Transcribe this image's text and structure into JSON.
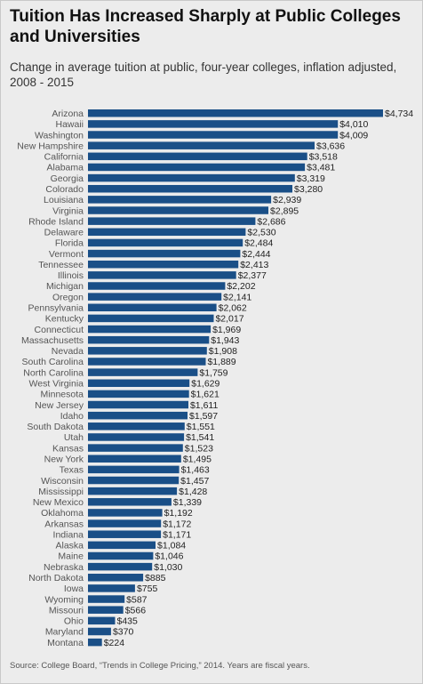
{
  "title": "Tuition Has Increased Sharply at Public Colleges and Universities",
  "subtitle": "Change in average tuition at public, four-year colleges, inflation adjusted, 2008 - 2015",
  "source": "Source: College Board, “Trends in College Pricing,” 2014. Years are fiscal years.",
  "colors": {
    "bar": "#1a4f87",
    "background": "#ececec"
  },
  "chart_data": {
    "type": "bar",
    "orientation": "horizontal",
    "title": "Tuition Has Increased Sharply at Public Colleges and Universities",
    "subtitle": "Change in average tuition at public, four-year colleges, inflation adjusted, 2008 - 2015",
    "xlabel": "",
    "ylabel": "",
    "xlim": [
      0,
      4734
    ],
    "grid": false,
    "categories": [
      "Arizona",
      "Hawaii",
      "Washington",
      "New Hampshire",
      "California",
      "Alabama",
      "Georgia",
      "Colorado",
      "Louisiana",
      "Virginia",
      "Rhode Island",
      "Delaware",
      "Florida",
      "Vermont",
      "Tennessee",
      "Illinois",
      "Michigan",
      "Oregon",
      "Pennsylvania",
      "Kentucky",
      "Connecticut",
      "Massachusetts",
      "Nevada",
      "South Carolina",
      "North Carolina",
      "West Virginia",
      "Minnesota",
      "New Jersey",
      "Idaho",
      "South Dakota",
      "Utah",
      "Kansas",
      "New York",
      "Texas",
      "Wisconsin",
      "Mississippi",
      "New Mexico",
      "Oklahoma",
      "Arkansas",
      "Indiana",
      "Alaska",
      "Maine",
      "Nebraska",
      "North Dakota",
      "Iowa",
      "Wyoming",
      "Missouri",
      "Ohio",
      "Maryland",
      "Montana"
    ],
    "values": [
      4734,
      4010,
      4009,
      3636,
      3518,
      3481,
      3319,
      3280,
      2939,
      2895,
      2686,
      2530,
      2484,
      2444,
      2413,
      2377,
      2202,
      2141,
      2062,
      2017,
      1969,
      1943,
      1908,
      1889,
      1759,
      1629,
      1621,
      1611,
      1597,
      1551,
      1541,
      1523,
      1495,
      1463,
      1457,
      1428,
      1339,
      1192,
      1172,
      1171,
      1084,
      1046,
      1030,
      885,
      755,
      587,
      566,
      435,
      370,
      224
    ],
    "value_labels": [
      "$4,734",
      "$4,010",
      "$4,009",
      "$3,636",
      "$3,518",
      "$3,481",
      "$3,319",
      "$3,280",
      "$2,939",
      "$2,895",
      "$2,686",
      "$2,530",
      "$2,484",
      "$2,444",
      "$2,413",
      "$2,377",
      "$2,202",
      "$2,141",
      "$2,062",
      "$2,017",
      "$1,969",
      "$1,943",
      "$1,908",
      "$1,889",
      "$1,759",
      "$1,629",
      "$1,621",
      "$1,611",
      "$1,597",
      "$1,551",
      "$1,541",
      "$1,523",
      "$1,495",
      "$1,463",
      "$1,457",
      "$1,428",
      "$1,339",
      "$1,192",
      "$1,172",
      "$1,171",
      "$1,084",
      "$1,046",
      "$1,030",
      "$885",
      "$755",
      "$587",
      "$566",
      "$435",
      "$370",
      "$224"
    ]
  }
}
